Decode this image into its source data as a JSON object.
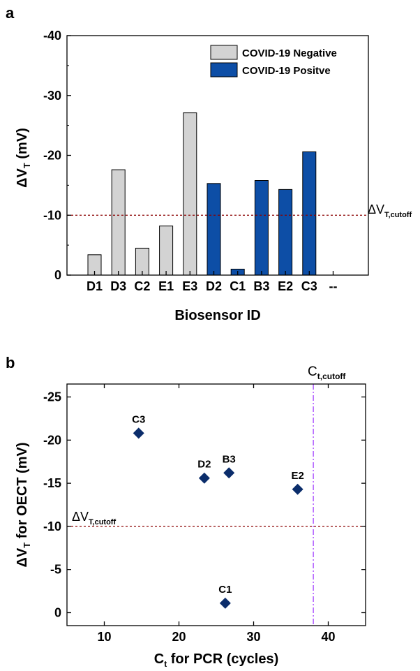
{
  "chart_data": [
    {
      "panel_label": "a",
      "type": "bar",
      "categories": [
        "D1",
        "D3",
        "C2",
        "E1",
        "E3",
        "D2",
        "C1",
        "B3",
        "E2",
        "C3",
        "--"
      ],
      "series": [
        {
          "name": "COVID-19 Negative",
          "color": "#d3d3d3",
          "values": [
            -3.4,
            -17.6,
            -4.5,
            -8.2,
            -27.1,
            null,
            null,
            null,
            null,
            null,
            null
          ]
        },
        {
          "name": "COVID-19 Positve",
          "color": "#0d4ea6",
          "values": [
            null,
            null,
            null,
            null,
            null,
            -15.3,
            -1.0,
            -15.8,
            -14.3,
            -20.6,
            null
          ]
        }
      ],
      "xlabel": "Biosensor ID",
      "ylabel_main": "ΔV",
      "ylabel_sub": "T",
      "ylabel_unit": " (mV)",
      "ylim": [
        0,
        -40
      ],
      "yticks": [
        0,
        -10,
        -20,
        -30,
        -40
      ],
      "ytick_labels": [
        "0",
        "-10",
        "-20",
        "-30",
        "-40"
      ],
      "threshold": {
        "value": -10,
        "label_main": "ΔV",
        "label_sub": "T,cutoff",
        "color": "#8b0000"
      },
      "legend_position": "top-right",
      "grid": false
    },
    {
      "panel_label": "b",
      "type": "scatter",
      "points": [
        {
          "label": "C3",
          "x": 14.6,
          "y": -20.8
        },
        {
          "label": "D2",
          "x": 23.4,
          "y": -15.6
        },
        {
          "label": "B3",
          "x": 26.7,
          "y": -16.2
        },
        {
          "label": "E2",
          "x": 35.9,
          "y": -14.3
        },
        {
          "label": "C1",
          "x": 26.2,
          "y": -1.1
        }
      ],
      "marker_color": "#0b2d6b",
      "xlabel_main": "C",
      "xlabel_sub": "t",
      "xlabel_rest": " for PCR (cycles)",
      "ylabel_main": "ΔV",
      "ylabel_sub": "T",
      "ylabel_rest": " for OECT (mV)",
      "xlim": [
        5,
        45
      ],
      "xticks": [
        10,
        20,
        30,
        40
      ],
      "xtick_labels": [
        "10",
        "20",
        "30",
        "40"
      ],
      "ylim": [
        1.5,
        -26.5
      ],
      "yticks": [
        0,
        -5,
        -10,
        -15,
        -20,
        -25
      ],
      "ytick_labels": [
        "0",
        "-5",
        "-10",
        "-15",
        "-20",
        "-25"
      ],
      "hline": {
        "value": -10,
        "label_main": "ΔV",
        "label_sub": "T,cutoff",
        "color": "#8b0000"
      },
      "vline": {
        "value": 38,
        "label_main": "C",
        "label_sub": "t,cutoff",
        "color": "#9b30ff"
      },
      "grid": false
    }
  ]
}
